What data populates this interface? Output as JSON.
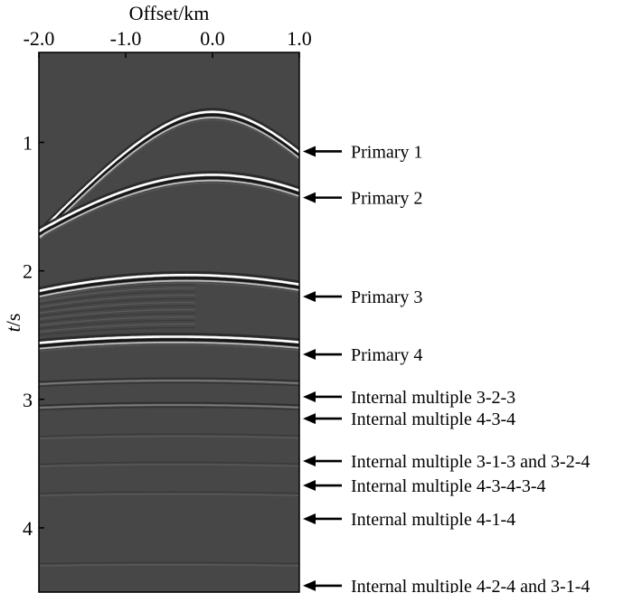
{
  "chart_data": {
    "type": "seismic_gather",
    "title": "",
    "xlabel": "Offset/km",
    "ylabel": "t/s",
    "ylabel_italic_part": "t",
    "ylabel_rest": "/s",
    "xlim": [
      -2.0,
      1.0
    ],
    "ylim": [
      0.3,
      4.5
    ],
    "x_axis_position": "top",
    "x_ticks": [
      -2.0,
      -1.0,
      0.0,
      1.0
    ],
    "x_tick_labels": [
      "-2.0",
      "-1.0",
      "0.0",
      "1.0"
    ],
    "y_ticks": [
      1,
      2,
      3,
      4
    ],
    "y_tick_labels": [
      "1",
      "2",
      "3",
      "4"
    ],
    "background_color": "#474747",
    "events": [
      {
        "name": "Primary 1",
        "apex_time": 0.78,
        "apex_offset": 0.0,
        "velocity": 1.3,
        "arrow_time": 1.07,
        "strength": "strong"
      },
      {
        "name": "Primary 2",
        "apex_time": 1.27,
        "apex_offset": 0.0,
        "velocity": 1.75,
        "arrow_time": 1.43,
        "strength": "strong"
      },
      {
        "name": "Primary 3",
        "apex_time": 2.05,
        "apex_offset": -0.3,
        "velocity": 2.35,
        "arrow_time": 2.2,
        "strength": "strong"
      },
      {
        "name": "Primary 4",
        "apex_time": 2.53,
        "apex_offset": -0.45,
        "velocity": 3.1,
        "arrow_time": 2.65,
        "strength": "strong"
      },
      {
        "name": "Internal multiple 3-2-3",
        "apex_time": 2.85,
        "apex_offset": -0.4,
        "velocity": 4.0,
        "arrow_time": 2.98,
        "strength": "weak"
      },
      {
        "name": "Internal multiple 4-3-4",
        "apex_time": 3.04,
        "apex_offset": -0.45,
        "velocity": 4.2,
        "arrow_time": 3.15,
        "strength": "weak"
      },
      {
        "name": "Internal multiple 3-1-3 and 3-2-4",
        "apex_time": 3.28,
        "apex_offset": -0.4,
        "velocity": 4.5,
        "arrow_time": 3.48,
        "strength": "faint"
      },
      {
        "name": "Internal multiple 4-3-4-3-4",
        "apex_time": 3.5,
        "apex_offset": -0.45,
        "velocity": 4.8,
        "arrow_time": 3.67,
        "strength": "faint"
      },
      {
        "name": "Internal multiple 4-1-4",
        "apex_time": 3.73,
        "apex_offset": -0.5,
        "velocity": 5.0,
        "arrow_time": 3.93,
        "strength": "faint"
      },
      {
        "name": "Internal multiple 4-2-4 and 3-1-4",
        "apex_time": 4.28,
        "apex_offset": -0.5,
        "velocity": 5.5,
        "arrow_time": 4.45,
        "strength": "faint"
      }
    ]
  }
}
